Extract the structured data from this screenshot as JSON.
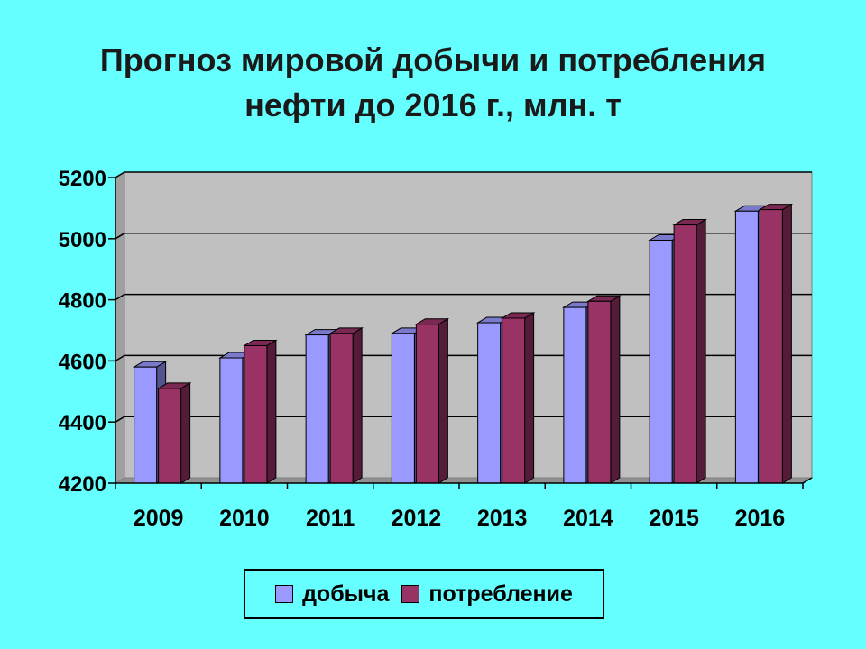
{
  "title_line1": "Прогноз мировой добычи и потребления",
  "title_line2": "нефти до 2016 г., млн. т",
  "colors": {
    "background": "#66FFFF",
    "plot_area": "#C0C0C0",
    "series1": "#9999FF",
    "series2": "#993366"
  },
  "chart_data": {
    "type": "bar",
    "categories": [
      "2009",
      "2010",
      "2011",
      "2012",
      "2013",
      "2014",
      "2015",
      "2016"
    ],
    "series": [
      {
        "name": "добыча",
        "values": [
          4580,
          4610,
          4685,
          4690,
          4725,
          4775,
          4995,
          5090
        ]
      },
      {
        "name": "потребление",
        "values": [
          4510,
          4650,
          4690,
          4720,
          4740,
          4795,
          5045,
          5095
        ]
      }
    ],
    "yticks": [
      4200,
      4400,
      4600,
      4800,
      5000,
      5200
    ],
    "ylim": [
      4200,
      5200
    ],
    "grid": true,
    "legend_position": "bottom"
  }
}
